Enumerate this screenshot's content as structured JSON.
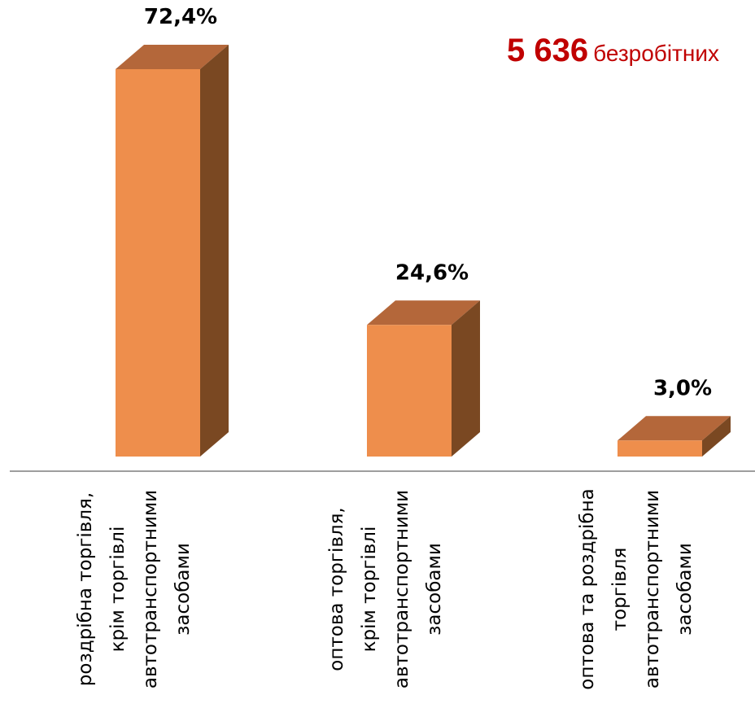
{
  "headline": {
    "number": "5 636",
    "text": "безробітних",
    "color": "#c00000"
  },
  "chart_data": {
    "type": "bar",
    "style": "3d",
    "categories": [
      [
        "роздрібна торгівля,",
        "крім торгівлі",
        "автотранспортними",
        "засобами"
      ],
      [
        "оптова торгівля,",
        "крім торгівлі",
        "автотранспортними",
        "засобами"
      ],
      [
        "оптова та роздрібна",
        "торгівля",
        "автотранспортними",
        "засобами"
      ]
    ],
    "values": [
      72.4,
      24.6,
      3.0
    ],
    "value_labels": [
      "72,4%",
      "24,6%",
      "3,0%"
    ],
    "unit": "%",
    "ylim": [
      0,
      72.4
    ],
    "grid": false,
    "legend": "none",
    "colors": {
      "front": "#ee8e4c",
      "top": "#b4673a",
      "side": "#7a4822",
      "axis": "#7f7f7f"
    }
  }
}
